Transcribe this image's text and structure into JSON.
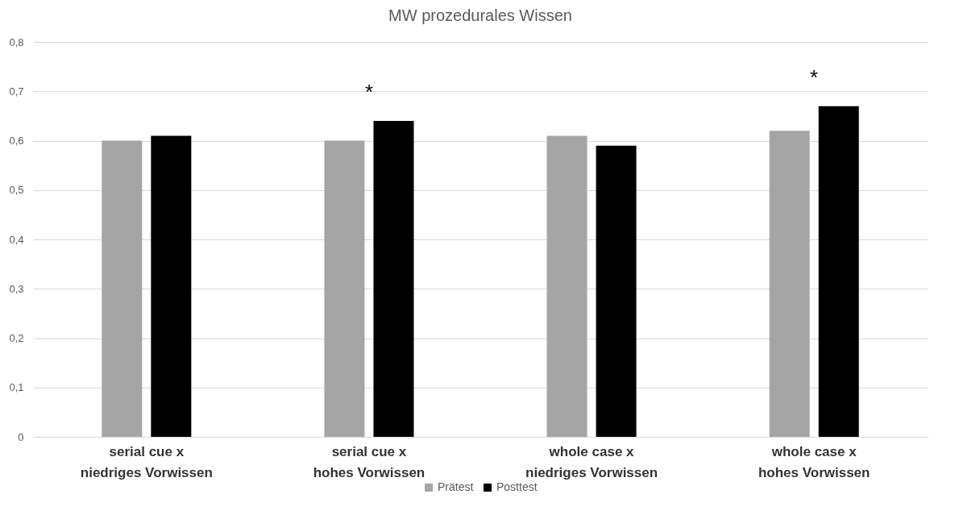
{
  "chart_data": {
    "type": "bar",
    "title": "MW prozedurales Wissen",
    "categories": [
      "serial cue x\nniedriges Vorwissen",
      "serial cue x\nhohes Vorwissen",
      "whole case x\nniedriges Vorwissen",
      "whole case x\nhohes Vorwissen"
    ],
    "series": [
      {
        "name": "Prätest",
        "color": "#a5a5a5",
        "values": [
          0.6,
          0.6,
          0.61,
          0.62
        ]
      },
      {
        "name": "Posttest",
        "color": "#000000",
        "values": [
          0.61,
          0.64,
          0.59,
          0.67
        ]
      }
    ],
    "ylim": [
      0,
      0.8
    ],
    "yticks": [
      {
        "value": 0,
        "label": "0"
      },
      {
        "value": 0.1,
        "label": "0,1"
      },
      {
        "value": 0.2,
        "label": "0,2"
      },
      {
        "value": 0.3,
        "label": "0,3"
      },
      {
        "value": 0.4,
        "label": "0,4"
      },
      {
        "value": 0.5,
        "label": "0,5"
      },
      {
        "value": 0.6,
        "label": "0,6"
      },
      {
        "value": 0.7,
        "label": "0,7"
      },
      {
        "value": 0.8,
        "label": "0,8"
      }
    ],
    "grid": "y",
    "legend": "bottom",
    "annotations": [
      "*",
      "*"
    ]
  }
}
